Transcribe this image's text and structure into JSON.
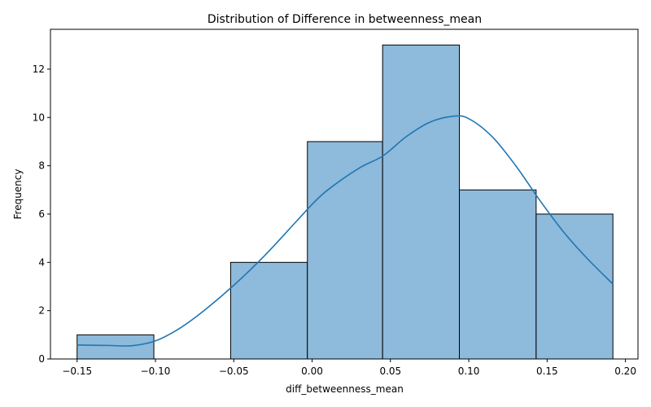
{
  "chart_data": {
    "type": "bar",
    "title": "Distribution of Difference in betweenness_mean",
    "xlabel": "diff_betweenness_mean",
    "ylabel": "Frequency",
    "xlim": [
      -0.167,
      0.208
    ],
    "ylim": [
      0,
      13.65
    ],
    "xticks": [
      -0.15,
      -0.1,
      -0.05,
      0.0,
      0.05,
      0.1,
      0.15,
      0.2
    ],
    "xtick_labels": [
      "−0.15",
      "−0.10",
      "−0.05",
      "0.00",
      "0.05",
      "0.10",
      "0.15",
      "0.20"
    ],
    "yticks": [
      0,
      2,
      4,
      6,
      8,
      10,
      12
    ],
    "ytick_labels": [
      "0",
      "2",
      "4",
      "6",
      "8",
      "10",
      "12"
    ],
    "bins": [
      {
        "x0": -0.15,
        "x1": -0.101,
        "count": 1
      },
      {
        "x0": -0.101,
        "x1": -0.052,
        "count": 0
      },
      {
        "x0": -0.052,
        "x1": -0.003,
        "count": 4
      },
      {
        "x0": -0.003,
        "x1": 0.045,
        "count": 9
      },
      {
        "x0": 0.045,
        "x1": 0.094,
        "count": 13
      },
      {
        "x0": 0.094,
        "x1": 0.143,
        "count": 7
      },
      {
        "x0": 0.143,
        "x1": 0.192,
        "count": 6
      }
    ],
    "kde": {
      "x": [
        -0.15,
        -0.13,
        -0.115,
        -0.1,
        -0.085,
        -0.07,
        -0.05,
        -0.03,
        -0.01,
        0.0,
        0.01,
        0.03,
        0.045,
        0.06,
        0.075,
        0.09,
        0.1,
        0.115,
        0.13,
        0.145,
        0.16,
        0.175,
        0.192
      ],
      "y": [
        0.58,
        0.56,
        0.55,
        0.75,
        1.25,
        1.95,
        3.05,
        4.3,
        5.7,
        6.4,
        7.0,
        7.9,
        8.4,
        9.2,
        9.8,
        10.05,
        9.95,
        9.2,
        8.0,
        6.6,
        5.3,
        4.2,
        3.1
      ]
    },
    "grid": false,
    "colors": {
      "bar_fill": "#8ebadb",
      "bar_edge": "#000000",
      "kde_line": "#1f77b4"
    }
  }
}
